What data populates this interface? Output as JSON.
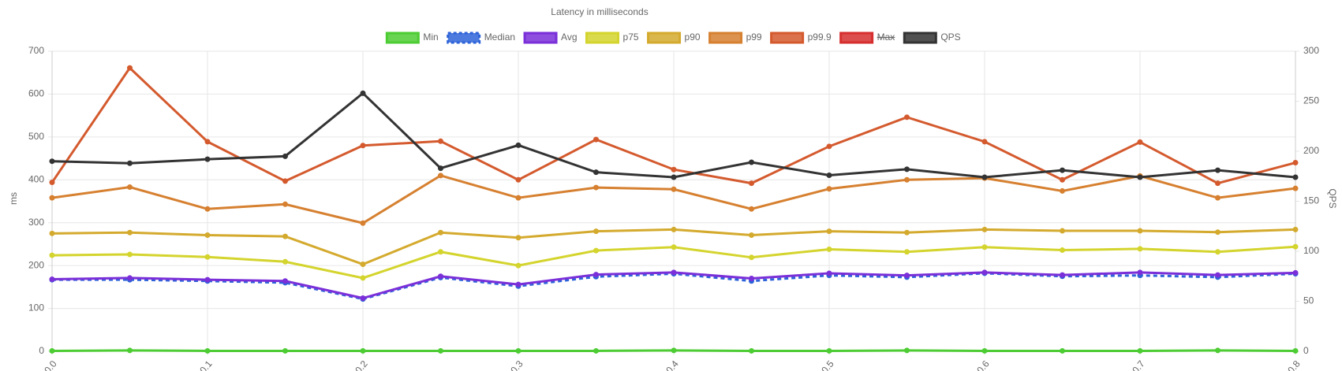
{
  "chart_data": {
    "type": "line",
    "title": "Latency in milliseconds",
    "ylabel": "ms",
    "y2label": "QPS",
    "categories": [
      "0.0",
      null,
      "0.1",
      null,
      "0.2",
      null,
      "0.3",
      null,
      "0.4",
      null,
      "0.5",
      null,
      "0.6",
      null,
      "0.7",
      null,
      "0.8"
    ],
    "ylim": [
      0,
      700
    ],
    "yticks": [
      0,
      100,
      200,
      300,
      400,
      500,
      600,
      700
    ],
    "y2lim": [
      0,
      300
    ],
    "y2ticks": [
      0,
      50,
      100,
      150,
      200,
      250,
      300
    ],
    "grid": true,
    "legend": "top",
    "series": [
      {
        "name": "Min",
        "color": "#4dcc33",
        "values": [
          1,
          2,
          1,
          1,
          1,
          1,
          1,
          1,
          2,
          1,
          1,
          2,
          1,
          1,
          1,
          2,
          1
        ]
      },
      {
        "name": "Median",
        "color": "#2d63d8",
        "dashed": true,
        "values": [
          167,
          167,
          164,
          160,
          122,
          172,
          152,
          174,
          181,
          164,
          177,
          173,
          182,
          175,
          177,
          173,
          181
        ]
      },
      {
        "name": "Avg",
        "color": "#7a2fd8",
        "values": [
          168,
          171,
          167,
          164,
          124,
          175,
          156,
          179,
          184,
          170,
          182,
          177,
          184,
          178,
          184,
          178,
          183
        ]
      },
      {
        "name": "p75",
        "color": "#d4d42e",
        "values": [
          224,
          226,
          220,
          209,
          171,
          232,
          200,
          235,
          243,
          219,
          238,
          232,
          243,
          236,
          239,
          232,
          244
        ]
      },
      {
        "name": "p90",
        "color": "#d4aa2e",
        "values": [
          275,
          277,
          271,
          268,
          203,
          277,
          265,
          280,
          284,
          271,
          280,
          277,
          284,
          281,
          281,
          278,
          284
        ]
      },
      {
        "name": "p99",
        "color": "#d68030",
        "values": [
          358,
          383,
          332,
          343,
          299,
          410,
          358,
          382,
          378,
          332,
          379,
          400,
          404,
          374,
          409,
          358,
          380
        ]
      },
      {
        "name": "p99.9",
        "color": "#d45a2e",
        "values": [
          394,
          661,
          489,
          397,
          480,
          490,
          400,
          494,
          424,
          392,
          478,
          546,
          489,
          400,
          488,
          392,
          440
        ]
      },
      {
        "name": "Max",
        "color": "#d62e2e",
        "hidden": true
      },
      {
        "name": "QPS",
        "color": "#333333",
        "axis": "y2",
        "values": [
          190,
          188,
          192,
          195,
          258,
          183,
          206,
          179,
          174,
          189,
          176,
          182,
          174,
          181,
          174,
          181,
          174
        ]
      }
    ]
  }
}
